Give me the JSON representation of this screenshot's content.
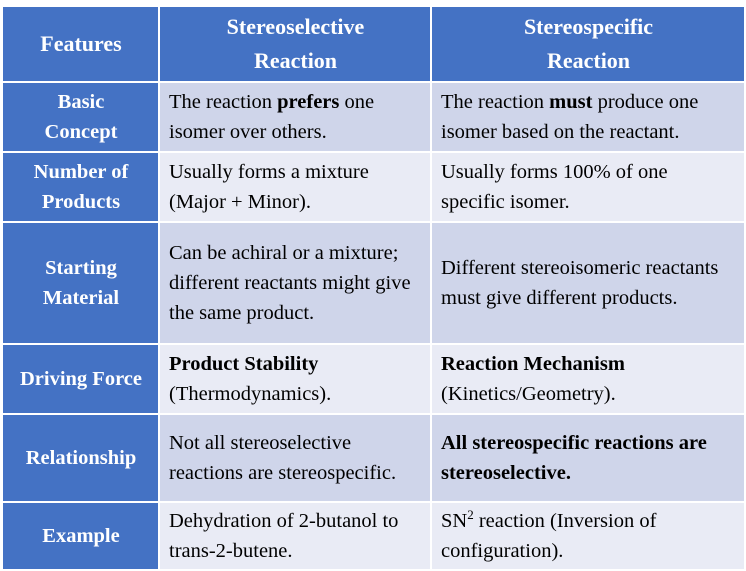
{
  "header": {
    "features": "Features",
    "col1_line1": "Stereoselective",
    "col1_line2": "Reaction",
    "col2_line1": "Stereospecific",
    "col2_line2": "Reaction"
  },
  "rows": [
    {
      "feature_line1": "Basic",
      "feature_line2": "Concept",
      "sel_a": "The reaction ",
      "sel_bold": "prefers",
      "sel_b": " one isomer over others.",
      "spec_a": "The reaction ",
      "spec_bold": "must",
      "spec_b": " produce one isomer based on the reactant."
    },
    {
      "feature_line1": "Number of",
      "feature_line2": "Products",
      "sel": "Usually forms a mixture (Major + Minor).",
      "spec": "Usually forms 100% of one specific isomer."
    },
    {
      "feature_line1": "Starting",
      "feature_line2": "Material",
      "sel": "Can be achiral or a mixture; different reactants might give the same product.",
      "spec": "Different stereoisomeric reactants must give different products."
    },
    {
      "feature": "Driving Force",
      "sel_bold": "Product Stability",
      "sel_rest": "(Thermodynamics).",
      "spec_bold": "Reaction Mechanism",
      "spec_rest": "(Kinetics/Geometry)."
    },
    {
      "feature": "Relationship",
      "sel": "Not all stereoselective reactions are stereospecific.",
      "spec_bold": "All stereospecific reactions are stereoselective."
    },
    {
      "feature": "Example",
      "sel": "Dehydration of 2-butanol to trans-2-butene.",
      "spec_prefix": "SN",
      "spec_sup": "2",
      "spec_rest": " reaction (Inversion of configuration)."
    }
  ]
}
